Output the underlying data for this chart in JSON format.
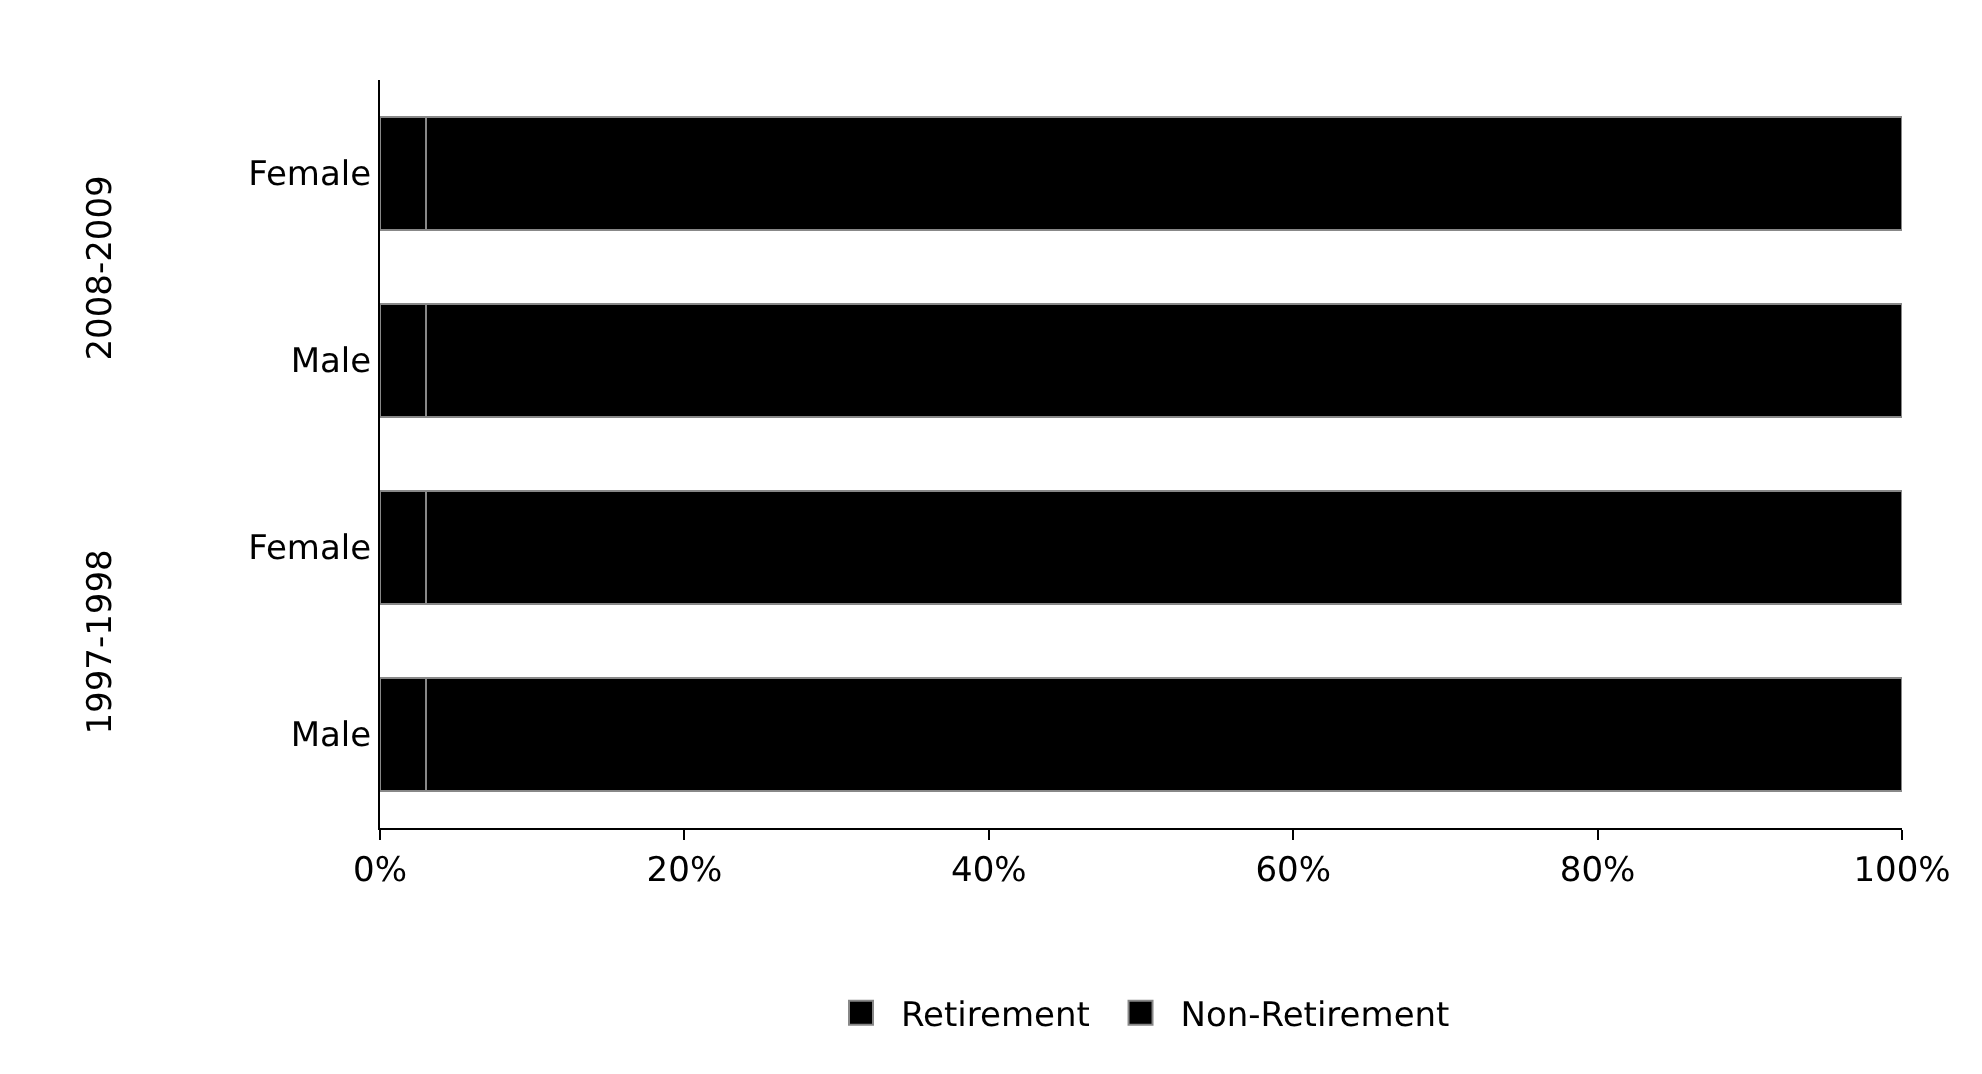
{
  "chart_data": {
    "type": "bar",
    "orientation": "horizontal",
    "stacked": true,
    "categories": [
      "Female",
      "Male",
      "Female",
      "Male"
    ],
    "series": [
      {
        "name": "Retirement",
        "color": "#000000",
        "values": [
          3,
          3,
          3,
          3
        ]
      },
      {
        "name": "Non-Retirement",
        "color": "#000000",
        "values": [
          97,
          97,
          97,
          97
        ]
      }
    ],
    "annotations": [
      "2008-2009",
      "1997-1998"
    ],
    "xlim": [
      0,
      100
    ],
    "xticks": [
      {
        "value": 0,
        "label": "0%"
      },
      {
        "value": 20,
        "label": "20%"
      },
      {
        "value": 40,
        "label": "40%"
      },
      {
        "value": 60,
        "label": "60%"
      },
      {
        "value": 80,
        "label": "80%"
      },
      {
        "value": 100,
        "label": "100%"
      }
    ],
    "legend": "bottom"
  }
}
